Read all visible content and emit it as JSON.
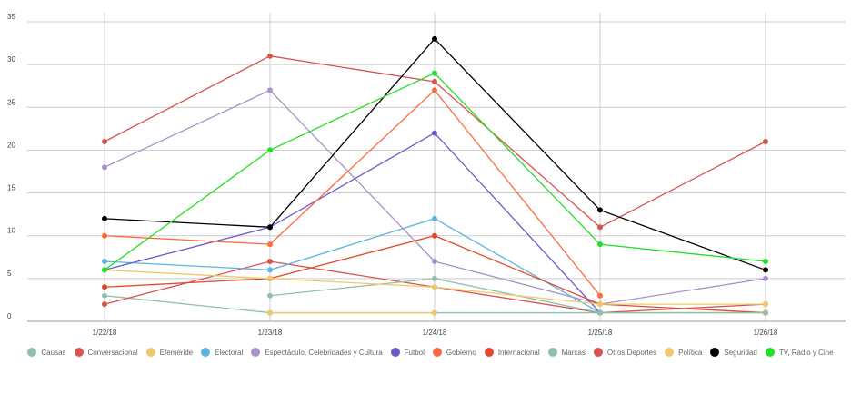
{
  "chart_data": {
    "type": "line",
    "x": [
      "1/22/18",
      "1/23/18",
      "1/24/18",
      "1/25/18",
      "1/26/18"
    ],
    "ylim": [
      0,
      35
    ],
    "yticks": [
      0,
      5,
      10,
      15,
      20,
      25,
      30,
      35
    ],
    "grid": true,
    "legend_position": "bottom",
    "series": [
      {
        "name": "Causas",
        "color": "#8fc1a9",
        "values": [
          3,
          1,
          1,
          1,
          1
        ]
      },
      {
        "name": "Conversacional",
        "color": "#d9534f",
        "values": [
          2,
          7,
          4,
          1,
          2
        ]
      },
      {
        "name": "Efeméride",
        "color": "#f0c869",
        "values": [
          null,
          1,
          1,
          null,
          null
        ]
      },
      {
        "name": "Electoral",
        "color": "#5bb5e0",
        "values": [
          7,
          6,
          12,
          1,
          null
        ]
      },
      {
        "name": "Espectáculo, Celebridades y Cultura",
        "color": "#a991c9",
        "values": [
          18,
          27,
          7,
          2,
          5
        ]
      },
      {
        "name": "Futbol",
        "color": "#6a5acd",
        "values": [
          6,
          11,
          22,
          1,
          null
        ]
      },
      {
        "name": "Gobierno",
        "color": "#ff6a3d",
        "values": [
          10,
          9,
          27,
          3,
          null
        ]
      },
      {
        "name": "Internacional",
        "color": "#e2492a",
        "values": [
          4,
          5,
          10,
          2,
          1
        ]
      },
      {
        "name": "Marcas",
        "color": "#8fc1a9",
        "values": [
          null,
          3,
          5,
          1,
          1
        ]
      },
      {
        "name": "Otros Deportes",
        "color": "#d9534f",
        "values": [
          21,
          31,
          28,
          11,
          21
        ]
      },
      {
        "name": "Política",
        "color": "#f0c869",
        "values": [
          6,
          5,
          4,
          2,
          2
        ]
      },
      {
        "name": "Seguridad",
        "color": "#000000",
        "values": [
          12,
          11,
          33,
          13,
          6
        ]
      },
      {
        "name": "TV, Radio y Cine",
        "color": "#22e022",
        "values": [
          6,
          20,
          29,
          9,
          7
        ]
      }
    ]
  }
}
